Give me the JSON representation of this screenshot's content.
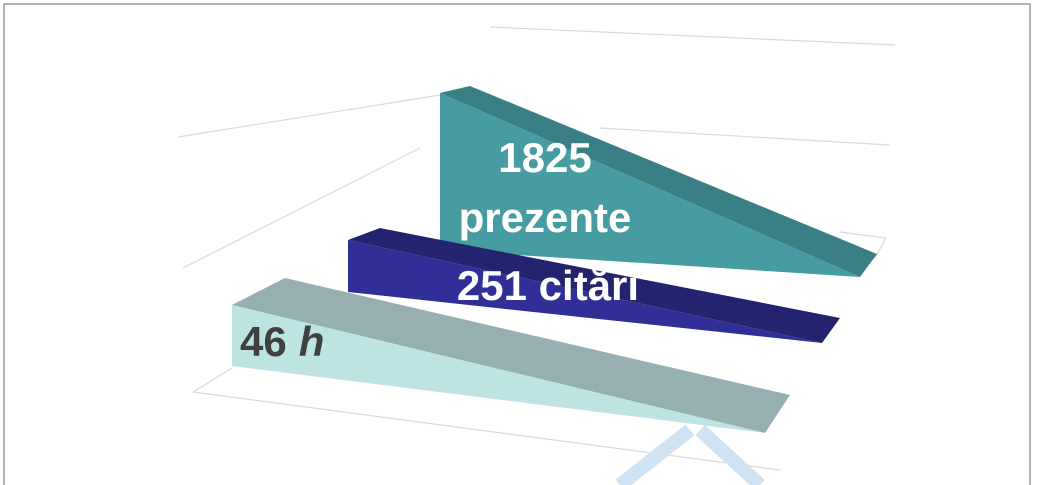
{
  "labels": {
    "first": "1825",
    "first_unit": "prezente",
    "second": "251 citări",
    "third": "46",
    "third_unit": "h"
  }
}
